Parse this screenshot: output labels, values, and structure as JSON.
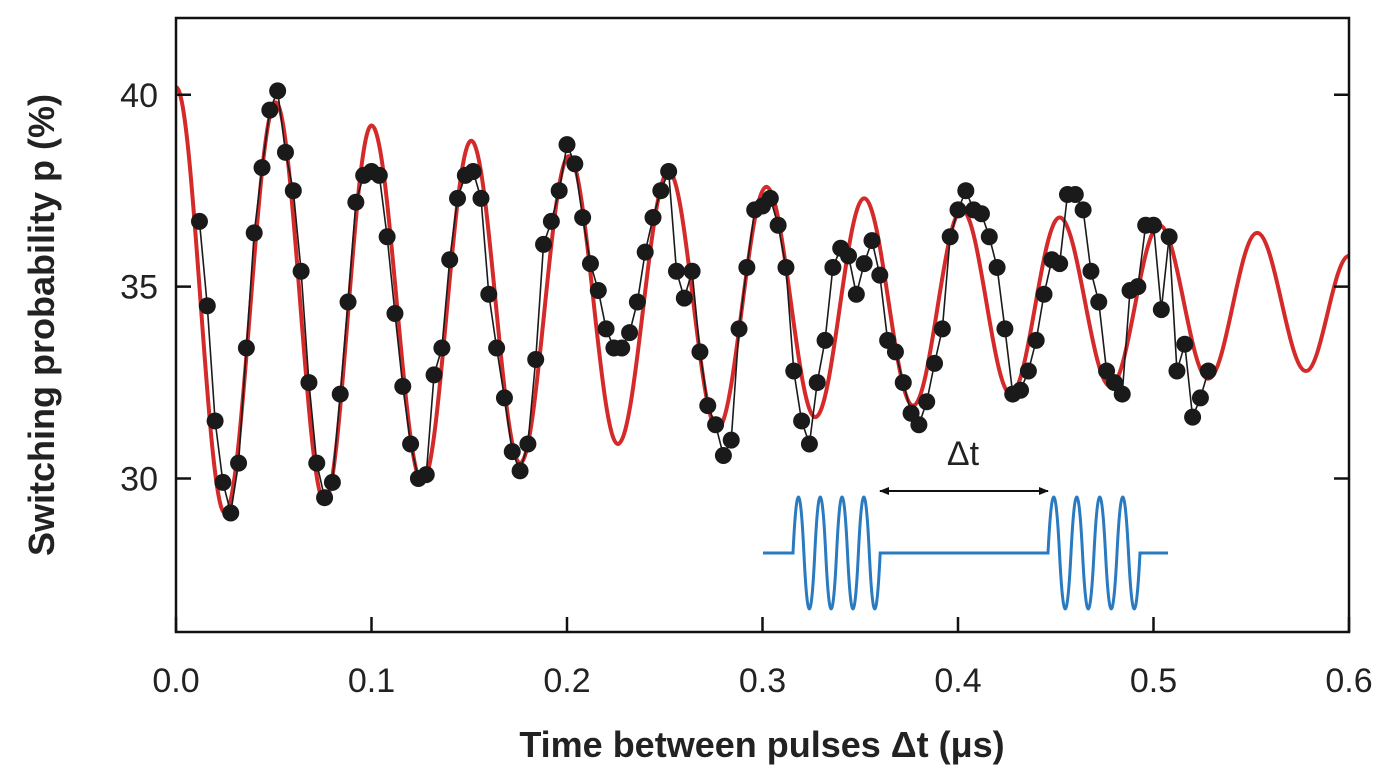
{
  "chart_data": {
    "type": "line",
    "xlabel": "Time between pulses Δt (μs)",
    "ylabel": "Switching probability p (%)",
    "annotation": "Δt",
    "xlim": [
      0,
      0.6
    ],
    "xticks": [
      {
        "value": 0,
        "label": "0.0"
      },
      0.1,
      0.2,
      0.3,
      0.4,
      0.5,
      0.6
    ],
    "ylim": [
      26,
      42
    ],
    "yticks": [
      30,
      35,
      40
    ],
    "series": [
      {
        "color": "#d42a2a",
        "markers": false,
        "x": [
          0,
          0.025,
          0.051,
          0.076,
          0.1,
          0.126,
          0.151,
          0.176,
          0.201,
          0.226,
          0.252,
          0.277,
          0.302,
          0.327,
          0.352,
          0.377,
          0.402,
          0.427,
          0.452,
          0.478,
          0.503,
          0.528,
          0.553,
          0.578,
          0.6
        ],
        "values": [
          40.2,
          29.1,
          39.8,
          29.4,
          39.2,
          29.9,
          38.8,
          30.4,
          38.4,
          30.9,
          38.0,
          31.3,
          37.6,
          31.6,
          37.3,
          31.9,
          37.0,
          32.2,
          36.8,
          32.4,
          36.6,
          32.6,
          36.4,
          32.8,
          35.8
        ]
      },
      {
        "color": "#1a1a1a",
        "markers": true,
        "x": [
          0.012,
          0.016,
          0.02,
          0.024,
          0.028,
          0.032,
          0.036,
          0.04,
          0.044,
          0.048,
          0.052,
          0.056,
          0.06,
          0.064,
          0.068,
          0.072,
          0.076,
          0.08,
          0.084,
          0.088,
          0.092,
          0.096,
          0.1,
          0.104,
          0.108,
          0.112,
          0.116,
          0.12,
          0.124,
          0.128,
          0.132,
          0.136,
          0.14,
          0.144,
          0.148,
          0.152,
          0.156,
          0.16,
          0.164,
          0.168,
          0.172,
          0.176,
          0.18,
          0.184,
          0.188,
          0.192,
          0.196,
          0.2,
          0.204,
          0.208,
          0.212,
          0.216,
          0.22,
          0.224,
          0.228,
          0.232,
          0.236,
          0.24,
          0.244,
          0.248,
          0.252,
          0.256,
          0.26,
          0.264,
          0.268,
          0.272,
          0.276,
          0.28,
          0.284,
          0.288,
          0.292,
          0.296,
          0.3,
          0.304,
          0.308,
          0.312,
          0.316,
          0.32,
          0.324,
          0.328,
          0.332,
          0.336,
          0.34,
          0.344,
          0.348,
          0.352,
          0.356,
          0.36,
          0.364,
          0.368,
          0.372,
          0.376,
          0.38,
          0.384,
          0.388,
          0.392,
          0.396,
          0.4,
          0.404,
          0.408,
          0.412,
          0.416,
          0.42,
          0.424,
          0.428,
          0.432,
          0.436,
          0.44,
          0.444,
          0.448,
          0.452,
          0.456,
          0.46,
          0.464,
          0.468,
          0.472,
          0.476,
          0.48,
          0.484,
          0.488,
          0.492,
          0.496,
          0.5,
          0.504,
          0.508,
          0.512,
          0.516,
          0.52,
          0.524,
          0.528
        ],
        "values": [
          36.7,
          34.5,
          31.5,
          29.9,
          29.1,
          30.4,
          33.4,
          36.4,
          38.1,
          39.6,
          40.1,
          38.5,
          37.5,
          35.4,
          32.5,
          30.4,
          29.5,
          29.9,
          32.2,
          34.6,
          37.2,
          37.9,
          38.0,
          37.9,
          36.3,
          34.3,
          32.4,
          30.9,
          30.0,
          30.1,
          32.7,
          33.4,
          35.7,
          37.3,
          37.9,
          38.0,
          37.3,
          34.8,
          33.4,
          32.1,
          30.7,
          30.2,
          30.9,
          33.1,
          36.1,
          36.7,
          37.5,
          38.7,
          38.2,
          36.8,
          35.6,
          34.9,
          33.9,
          33.4,
          33.4,
          33.8,
          34.6,
          35.9,
          36.8,
          37.5,
          38.0,
          35.4,
          34.7,
          35.4,
          33.3,
          31.9,
          31.4,
          30.6,
          31.0,
          33.9,
          35.5,
          37.0,
          37.1,
          37.3,
          36.6,
          35.5,
          32.8,
          31.5,
          30.9,
          32.5,
          33.6,
          35.5,
          36.0,
          35.8,
          34.8,
          35.6,
          36.2,
          35.3,
          33.6,
          33.3,
          32.5,
          31.7,
          31.4,
          32.0,
          33.0,
          33.9,
          36.3,
          37.0,
          37.5,
          37.0,
          36.9,
          36.3,
          35.5,
          33.9,
          32.2,
          32.3,
          32.8,
          33.6,
          34.8,
          35.7,
          35.6,
          37.4,
          37.4,
          37.0,
          35.4,
          34.6,
          32.8,
          32.5,
          32.2,
          34.9,
          35.0,
          36.6,
          36.6,
          34.4,
          36.3,
          32.8,
          33.5,
          31.6,
          32.1,
          32.8
        ]
      }
    ]
  }
}
